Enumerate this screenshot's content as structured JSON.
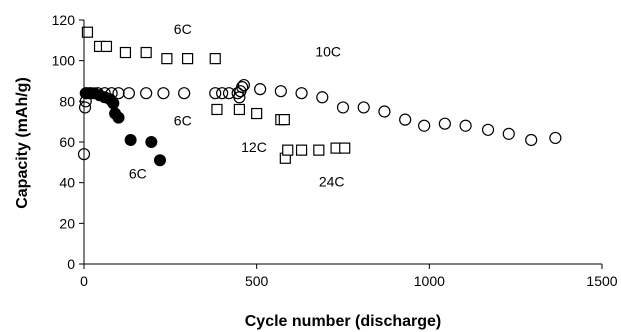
{
  "chart_data": {
    "type": "scatter",
    "xlabel": "Cycle number (discharge)",
    "ylabel": "Capacity (mAh/g)",
    "xlim": [
      0,
      1500
    ],
    "ylim": [
      0,
      120
    ],
    "x_ticks": [
      0,
      500,
      1000,
      1500
    ],
    "y_ticks": [
      0,
      20,
      40,
      60,
      80,
      100,
      120
    ],
    "grid": false,
    "legend": "none",
    "series": [
      {
        "marker": "circle-open",
        "color": "#000000",
        "points": [
          [
            0,
            54
          ],
          [
            3,
            77
          ],
          [
            5,
            80
          ],
          [
            8,
            84
          ],
          [
            20,
            84
          ],
          [
            40,
            84
          ],
          [
            60,
            84
          ],
          [
            80,
            84
          ],
          [
            100,
            84
          ],
          [
            130,
            84
          ],
          [
            180,
            84
          ],
          [
            230,
            84
          ],
          [
            290,
            84
          ],
          [
            380,
            84
          ],
          [
            400,
            84
          ],
          [
            420,
            84
          ],
          [
            445,
            84
          ],
          [
            450,
            82
          ],
          [
            453,
            85
          ],
          [
            458,
            87
          ],
          [
            463,
            88
          ],
          [
            510,
            86
          ],
          [
            570,
            85
          ],
          [
            630,
            84
          ],
          [
            690,
            82
          ],
          [
            750,
            77
          ],
          [
            810,
            77
          ],
          [
            870,
            75
          ],
          [
            930,
            71
          ],
          [
            985,
            68
          ],
          [
            1045,
            69
          ],
          [
            1105,
            68
          ],
          [
            1170,
            66
          ],
          [
            1230,
            64
          ],
          [
            1295,
            61
          ],
          [
            1365,
            62
          ]
        ]
      },
      {
        "marker": "square-open",
        "color": "#000000",
        "points": [
          [
            10,
            114
          ],
          [
            45,
            107
          ],
          [
            65,
            107
          ],
          [
            120,
            104
          ],
          [
            180,
            104
          ],
          [
            240,
            101
          ],
          [
            300,
            101
          ],
          [
            380,
            101
          ],
          [
            385,
            76
          ],
          [
            450,
            76
          ],
          [
            500,
            74
          ],
          [
            570,
            71
          ],
          [
            580,
            71
          ],
          [
            583,
            52
          ],
          [
            590,
            56
          ],
          [
            630,
            56
          ],
          [
            680,
            56
          ],
          [
            730,
            57
          ],
          [
            755,
            57
          ]
        ]
      },
      {
        "marker": "circle-filled",
        "color": "#000000",
        "points": [
          [
            5,
            84
          ],
          [
            15,
            84
          ],
          [
            30,
            84
          ],
          [
            45,
            83
          ],
          [
            60,
            82
          ],
          [
            75,
            81
          ],
          [
            85,
            79
          ],
          [
            90,
            74
          ],
          [
            100,
            72
          ],
          [
            135,
            61
          ],
          [
            195,
            60
          ],
          [
            220,
            51
          ]
        ]
      }
    ],
    "annotations": [
      {
        "text": "6C",
        "x": 260,
        "y": 113
      },
      {
        "text": "10C",
        "x": 670,
        "y": 102
      },
      {
        "text": "6C",
        "x": 260,
        "y": 68
      },
      {
        "text": "12C",
        "x": 455,
        "y": 55
      },
      {
        "text": "6C",
        "x": 130,
        "y": 42
      },
      {
        "text": "24C",
        "x": 680,
        "y": 38
      }
    ]
  }
}
